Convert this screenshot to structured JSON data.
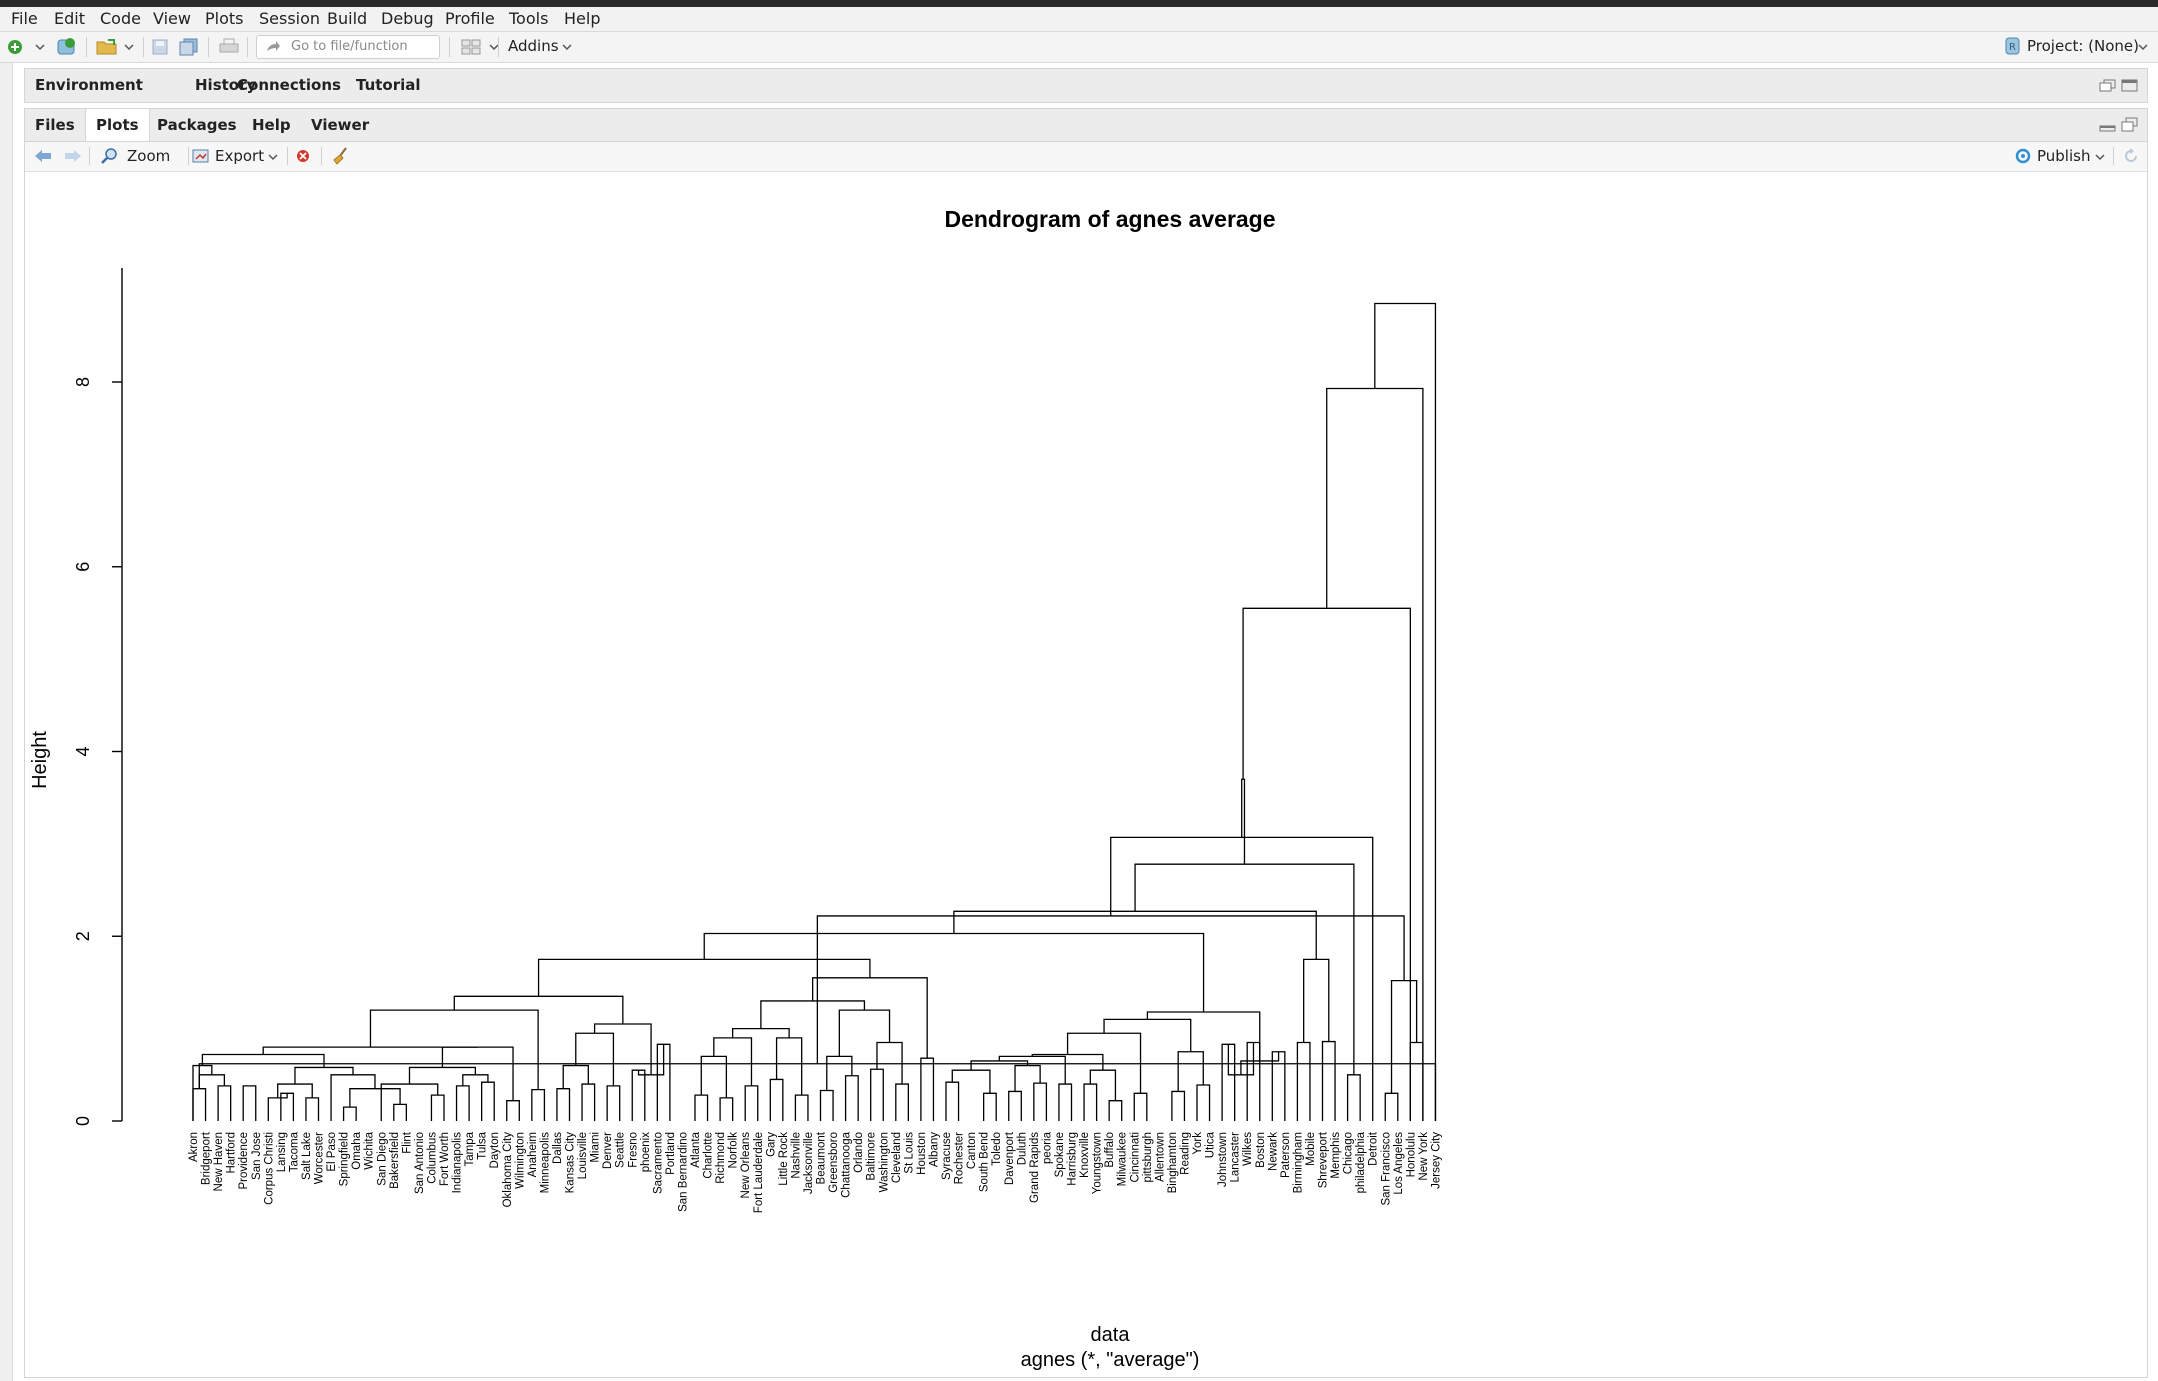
{
  "menu": [
    "File",
    "Edit",
    "Code",
    "View",
    "Plots",
    "Session",
    "Build",
    "Debug",
    "Profile",
    "Tools",
    "Help"
  ],
  "toolbar": {
    "goto_placeholder": "Go to file/function",
    "addins_label": "Addins",
    "project_label": "Project: (None)"
  },
  "top_tabs": [
    "Environment",
    "History",
    "Connections",
    "Tutorial"
  ],
  "bottom_tabs": [
    "Files",
    "Plots",
    "Packages",
    "Help",
    "Viewer"
  ],
  "active_bottom_tab": "Plots",
  "plots_toolbar": {
    "zoom_label": "Zoom",
    "export_label": "Export",
    "publish_label": "Publish"
  },
  "colors": {
    "accent": "#2f6fb3",
    "line": "#000000"
  },
  "chart_data": {
    "type": "dendrogram",
    "title": "Dendrogram of agnes average",
    "ylabel": "Height",
    "xlabel": "data",
    "sublabel": "agnes (*, \"average\")",
    "ylim": [
      0,
      9
    ],
    "yticks": [
      0,
      2,
      4,
      6,
      8
    ],
    "leaves": [
      "Akron",
      "Bridgeport",
      "New Haven",
      "Hartford",
      "Providence",
      "San Jose",
      "Corpus Christi",
      "Lansing",
      "Tacoma",
      "Salt Lake",
      "Worcester",
      "El Paso",
      "Springfield",
      "Omaha",
      "Wichita",
      "San Diego",
      "Bakersfield",
      "Flint",
      "San Antonio",
      "Columbus",
      "Fort Worth",
      "Indianapolis",
      "Tampa",
      "Tulsa",
      "Dayton",
      "Oklahoma City",
      "Wilmington",
      "Anaheim",
      "Minneapolis",
      "Dallas",
      "Kansas City",
      "Louisville",
      "Miami",
      "Denver",
      "Seattle",
      "Fresno",
      "phoenix",
      "Sacramento",
      "Portland",
      "San Bernardino",
      "Atlanta",
      "Charlotte",
      "Richmond",
      "Norfolk",
      "New Orleans",
      "Fort Lauderdale",
      "Gary",
      "Little Rock",
      "Nashville",
      "Jacksonville",
      "Beaumont",
      "Greensboro",
      "Chattanooga",
      "Orlando",
      "Baltimore",
      "Washington",
      "Cleveland",
      "St Louis",
      "Houston",
      "Albany",
      "Syracuse",
      "Rochester",
      "Canton",
      "South Bend",
      "Toledo",
      "Davenport",
      "Duluth",
      "Grand Rapids",
      "peoria",
      "Spokane",
      "Harrisburg",
      "Knoxville",
      "Youngstown",
      "Buffalo",
      "Milwaukee",
      "Cincinnati",
      "pittsburgh",
      "Allentown",
      "Binghamton",
      "Reading",
      "York",
      "Utica",
      "Johnstown",
      "Lancaster",
      "Wilkes",
      "Boston",
      "Newark",
      "Paterson",
      "Birmingham",
      "Mobile",
      "Shreveport",
      "Memphis",
      "Chicago",
      "philadelphia",
      "Detroit",
      "San Francisco",
      "Los Angeles",
      "Honolulu",
      "New York",
      "Jersey City"
    ],
    "merges": [
      [
        1,
        2,
        0.35
      ],
      [
        3,
        4,
        0.38
      ],
      [
        8,
        9,
        0.3
      ],
      [
        10,
        11,
        0.25
      ],
      [
        13,
        14,
        0.15
      ],
      [
        17,
        18,
        0.18
      ],
      [
        20,
        21,
        0.28
      ],
      [
        22,
        23,
        0.38
      ],
      [
        24,
        25,
        0.42
      ],
      [
        26,
        27,
        0.22
      ],
      [
        28,
        29,
        0.34
      ],
      [
        30,
        31,
        0.35
      ],
      [
        32,
        33,
        0.4
      ],
      [
        34,
        35,
        0.38
      ],
      [
        36,
        37,
        0.55
      ],
      [
        38,
        39,
        0.83
      ],
      [
        41,
        42,
        0.28
      ],
      [
        43,
        44,
        0.25
      ],
      [
        45,
        46,
        0.38
      ],
      [
        47,
        48,
        0.45
      ],
      [
        49,
        50,
        0.28
      ],
      [
        51,
        52,
        0.33
      ],
      [
        53,
        54,
        0.49
      ],
      [
        55,
        56,
        0.56
      ],
      [
        57,
        58,
        0.4
      ],
      [
        59,
        60,
        0.68
      ],
      [
        61,
        62,
        0.42
      ],
      [
        64,
        65,
        0.3
      ],
      [
        66,
        67,
        0.32
      ],
      [
        68,
        69,
        0.41
      ],
      [
        70,
        71,
        0.4
      ],
      [
        72,
        73,
        0.4
      ],
      [
        74,
        75,
        0.22
      ],
      [
        76,
        77,
        0.3
      ],
      [
        79,
        80,
        0.32
      ],
      [
        81,
        82,
        0.39
      ],
      [
        83,
        84,
        0.83
      ],
      [
        85,
        86,
        0.85
      ],
      [
        87,
        88,
        0.75
      ],
      [
        89,
        90,
        0.85
      ],
      [
        91,
        92,
        0.86
      ],
      [
        93,
        94,
        0.5
      ],
      [
        96,
        97,
        0.3
      ],
      [
        98,
        99,
        0.85
      ],
      [
        100,
        101,
        0.62
      ]
    ]
  }
}
